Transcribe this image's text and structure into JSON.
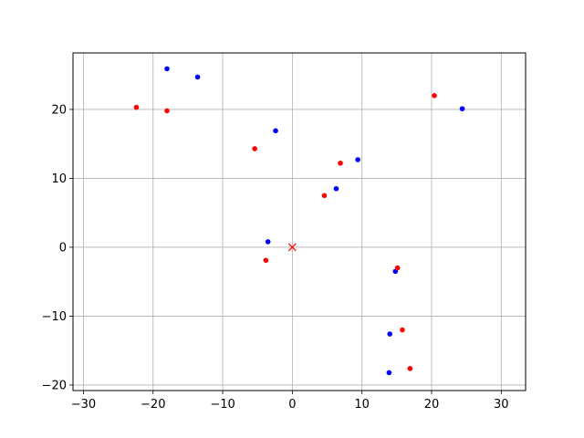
{
  "chart_data": {
    "type": "scatter",
    "xlim": [
      -31.5,
      33.5
    ],
    "ylim": [
      -20.8,
      28.2
    ],
    "xticks": [
      -30,
      -20,
      -10,
      0,
      10,
      20,
      30
    ],
    "yticks": [
      -20,
      -10,
      0,
      10,
      20
    ],
    "xtick_labels": [
      "−30",
      "−20",
      "−10",
      "0",
      "10",
      "20",
      "30"
    ],
    "ytick_labels": [
      "−20",
      "−10",
      "0",
      "10",
      "20"
    ],
    "grid": true,
    "series": [
      {
        "color": "#0000ff",
        "marker": "dot",
        "points": [
          {
            "x": -18.0,
            "y": 25.9
          },
          {
            "x": -13.6,
            "y": 24.7
          },
          {
            "x": -2.4,
            "y": 16.9
          },
          {
            "x": 9.4,
            "y": 12.7
          },
          {
            "x": 6.3,
            "y": 8.5
          },
          {
            "x": -3.5,
            "y": 0.8
          },
          {
            "x": 14.8,
            "y": -3.5
          },
          {
            "x": 14.0,
            "y": -12.6
          },
          {
            "x": 13.9,
            "y": -18.2
          },
          {
            "x": 24.4,
            "y": 20.1
          }
        ]
      },
      {
        "color": "#ff0000",
        "marker": "dot",
        "points": [
          {
            "x": -22.4,
            "y": 20.3
          },
          {
            "x": -18.0,
            "y": 19.8
          },
          {
            "x": -5.4,
            "y": 14.3
          },
          {
            "x": 6.9,
            "y": 12.2
          },
          {
            "x": 4.6,
            "y": 7.5
          },
          {
            "x": -3.8,
            "y": -1.9
          },
          {
            "x": 15.1,
            "y": -3.0
          },
          {
            "x": 15.8,
            "y": -12.0
          },
          {
            "x": 16.9,
            "y": -17.6
          },
          {
            "x": 20.4,
            "y": 22.0
          }
        ]
      },
      {
        "color": "#ff0000",
        "marker": "x",
        "points": [
          {
            "x": 0,
            "y": 0
          }
        ]
      }
    ]
  }
}
